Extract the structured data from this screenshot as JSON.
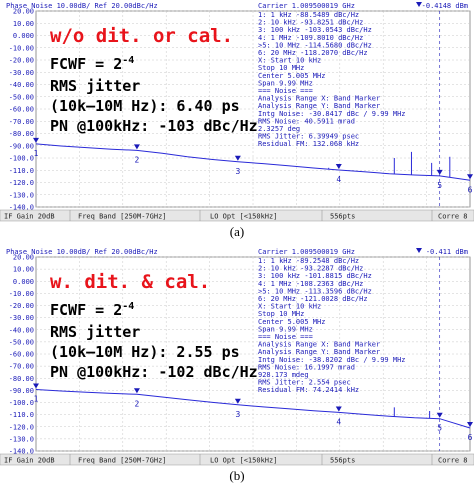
{
  "chart_data": [
    {
      "type": "line",
      "caption": "(a)",
      "header_left": "Phase Noise 10.00dB/ Ref 20.00dBc/Hz",
      "header_right": "Carrier 1.009500019 GHz",
      "header_marker": "-0.4148 dBm",
      "ylim": [
        -140,
        20
      ],
      "ytick_labels": [
        "20.00",
        "10.00",
        "0.000",
        "-10.00",
        "-20.00",
        "-30.00",
        "-40.00",
        "-50.00",
        "-60.00",
        "-70.00",
        "-80.00",
        "-90.00",
        "-100.0",
        "-110.0",
        "-120.0",
        "-130.0",
        "-140.0"
      ],
      "overlay_lines": [
        "w/o dit. or cal.",
        "FCWF = 2^-4",
        "RMS jitter",
        "(10k–10M Hz): 6.40 ps",
        "PN @100kHz: -103 dBc/Hz"
      ],
      "readout_lines": [
        "1:   1 kHz      -88.5489 dBc/Hz",
        "2:  10 kHz      -93.8251 dBc/Hz",
        "3: 100 kHz     -103.0543 dBc/Hz",
        "4:   1 MHz     -109.8010 dBc/Hz",
        ">5:  10 MHz    -114.5680 dBc/Hz",
        "6:  20 MHz     -118.2070 dBc/Hz",
        "X: Start 10 kHz",
        "Stop 10 MHz",
        "Center 5.005 MHz",
        "Span 9.99 MHz",
        "=== Noise ===",
        "Analysis Range X: Band Marker",
        "Analysis Range Y: Band Marker",
        "Intg Noise: -30.8417 dBc / 9.99 MHz",
        "RMS Noise: 40.5911 mrad",
        "2.3257 deg",
        "RMS Jitter: 6.39949 psec",
        "Residual FM: 132.068 kHz"
      ],
      "footer": [
        "IF Gain 20dB",
        "Freq Band [250M-7GHz]",
        "LO Opt [<150kHz]",
        "556pts",
        "Corre 8"
      ],
      "series": [
        {
          "x_decade": [
            0,
            0.25,
            0.5,
            0.75,
            1,
            1.25,
            1.5,
            1.75,
            2,
            2.25,
            2.5,
            2.75,
            3,
            3.25,
            3.5,
            3.75,
            4,
            4.3
          ],
          "values": [
            -88.5,
            -90.2,
            -91.5,
            -92.8,
            -93.8,
            -96.2,
            -98.9,
            -101.2,
            -103.1,
            -104.6,
            -106.3,
            -108.2,
            -109.8,
            -111.3,
            -112.8,
            -113.9,
            -114.6,
            -118.2
          ]
        }
      ],
      "spurs": [
        {
          "x_decade": 2.9,
          "value": -108
        },
        {
          "x_decade": 3.55,
          "value": -100
        },
        {
          "x_decade": 3.72,
          "value": -95
        },
        {
          "x_decade": 3.92,
          "value": -104
        },
        {
          "x_decade": 4.1,
          "value": -99
        }
      ],
      "markers": [
        {
          "label": "1",
          "x_decade": 0,
          "value": -88.5
        },
        {
          "label": "2",
          "x_decade": 1,
          "value": -93.8
        },
        {
          "label": "3",
          "x_decade": 2,
          "value": -103.1
        },
        {
          "label": "4",
          "x_decade": 3,
          "value": -109.8
        },
        {
          "label": "5",
          "x_decade": 4,
          "value": -114.6
        },
        {
          "label": "6",
          "x_decade": 4.3,
          "value": -118.2
        }
      ]
    },
    {
      "type": "line",
      "caption": "(b)",
      "header_left": "Phase Noise 10.00dB/ Ref 20.00dBc/Hz",
      "header_right": "Carrier 1.009500019 GHz",
      "header_marker": "-0.411 dBm",
      "ylim": [
        -140,
        20
      ],
      "ytick_labels": [
        "20.00",
        "10.00",
        "0.000",
        "-10.00",
        "-20.00",
        "-30.00",
        "-40.00",
        "-50.00",
        "-60.00",
        "-70.00",
        "-80.00",
        "-90.00",
        "-100.0",
        "-110.0",
        "-120.0",
        "-130.0",
        "-140.0"
      ],
      "overlay_lines": [
        "w. dit. & cal.",
        "FCWF = 2^-4",
        "RMS jitter",
        "(10k–10M Hz): 2.55 ps",
        "PN @100kHz: -102 dBc/Hz"
      ],
      "readout_lines": [
        "1:   1 kHz      -89.2548 dBc/Hz",
        "2:  10 kHz      -93.2287 dBc/Hz",
        "3: 100 kHz     -101.8815 dBc/Hz",
        "4:   1 MHz     -108.2363 dBc/Hz",
        ">5:  10 MHz    -113.3596 dBc/Hz",
        "6:  20 MHz     -121.0028 dBc/Hz",
        "X: Start 10 kHz",
        "Stop 10 MHz",
        "Center 5.005 MHz",
        "Span 9.99 MHz",
        "=== Noise ===",
        "Analysis Range X: Band Marker",
        "Analysis Range Y: Band Marker",
        "Intg Noise: -38.8202 dBc / 9.99 MHz",
        "RMS Noise: 16.1997 mrad",
        "928.173 mdeg",
        "RMS Jitter: 2.554 psec",
        "Residual FM: 74.2414 kHz"
      ],
      "footer": [
        "IF Gain 20dB",
        "Freq Band [250M-7GHz]",
        "LO Opt [<150kHz]",
        "556pts",
        "Corre 8"
      ],
      "series": [
        {
          "x_decade": [
            0,
            0.25,
            0.5,
            0.75,
            1,
            1.25,
            1.5,
            1.75,
            2,
            2.25,
            2.5,
            2.75,
            3,
            3.25,
            3.5,
            3.75,
            4,
            4.3
          ],
          "values": [
            -89.3,
            -90.5,
            -91.6,
            -92.5,
            -93.2,
            -95.5,
            -97.7,
            -99.9,
            -101.9,
            -103.6,
            -105.2,
            -106.8,
            -108.2,
            -109.8,
            -111.4,
            -112.6,
            -113.4,
            -121.0
          ]
        }
      ],
      "spurs": [
        {
          "x_decade": 3.55,
          "value": -104
        },
        {
          "x_decade": 3.9,
          "value": -107
        }
      ],
      "markers": [
        {
          "label": "1",
          "x_decade": 0,
          "value": -89.3
        },
        {
          "label": "2",
          "x_decade": 1,
          "value": -93.2
        },
        {
          "label": "3",
          "x_decade": 2,
          "value": -101.9
        },
        {
          "label": "4",
          "x_decade": 3,
          "value": -108.2
        },
        {
          "label": "5",
          "x_decade": 4,
          "value": -113.4
        },
        {
          "label": "6",
          "x_decade": 4.3,
          "value": -121.0
        }
      ]
    }
  ]
}
